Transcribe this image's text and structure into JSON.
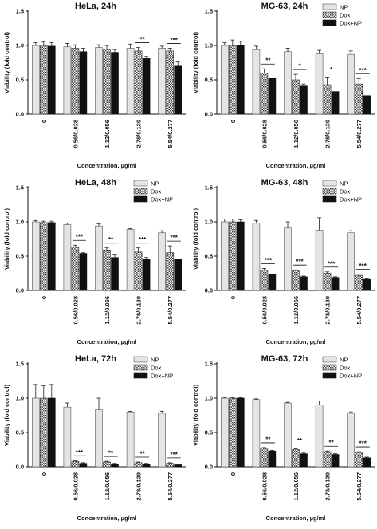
{
  "chart_data": [
    {
      "type": "bar",
      "title": "HeLa, 24h",
      "xlabel": "Concentration, µg/ml",
      "ylabel": "Viability (fold control)",
      "ylim": [
        0,
        1.5
      ],
      "yticks": [
        "0.0",
        "0.5",
        "1.0",
        "1.5"
      ],
      "categories": [
        "0",
        "0.56/0.028",
        "1.12/0.056",
        "2.78/0.139",
        "5.54/0.277"
      ],
      "legend": false,
      "series": [
        {
          "name": "NP",
          "values": [
            1.0,
            0.98,
            0.97,
            0.96,
            0.96
          ],
          "errors": [
            0.04,
            0.05,
            0.04,
            0.06,
            0.03
          ]
        },
        {
          "name": "Dox",
          "values": [
            1.0,
            0.96,
            0.95,
            0.92,
            0.92
          ],
          "errors": [
            0.05,
            0.05,
            0.05,
            0.05,
            0.04
          ]
        },
        {
          "name": "Dox+NP",
          "values": [
            0.99,
            0.91,
            0.9,
            0.81,
            0.7
          ],
          "errors": [
            0.05,
            0.05,
            0.04,
            0.03,
            0.06
          ]
        }
      ],
      "significance": [
        "",
        "",
        "",
        "**",
        "***"
      ]
    },
    {
      "type": "bar",
      "title": "MG-63, 24h",
      "xlabel": "Concentration, µg/ml",
      "ylabel": "Viability (fold control)",
      "ylim": [
        0,
        1.5
      ],
      "yticks": [
        "0.0",
        "0.5",
        "1.0",
        "1.5"
      ],
      "categories": [
        "0",
        "0.56/0.028",
        "1.12/0.056",
        "2.78/0.139",
        "5.54/0.277"
      ],
      "legend": true,
      "legend_position": "top-right",
      "series": [
        {
          "name": "NP",
          "values": [
            1.0,
            0.94,
            0.91,
            0.88,
            0.87
          ],
          "errors": [
            0.04,
            0.05,
            0.05,
            0.05,
            0.05
          ]
        },
        {
          "name": "Dox",
          "values": [
            1.0,
            0.6,
            0.5,
            0.43,
            0.44
          ],
          "errors": [
            0.08,
            0.06,
            0.08,
            0.1,
            0.08
          ]
        },
        {
          "name": "Dox+NP",
          "values": [
            1.0,
            0.52,
            0.41,
            0.33,
            0.27
          ],
          "errors": [
            0.06,
            0.0,
            0.03,
            0.0,
            0.0
          ]
        }
      ],
      "significance": [
        "",
        "**",
        "*",
        "*",
        "***"
      ]
    },
    {
      "type": "bar",
      "title": "HeLa, 48h",
      "xlabel": "Concentration, µg/ml",
      "ylabel": "Viability (fold control)",
      "ylim": [
        0,
        1.5
      ],
      "yticks": [
        "0.0",
        "0.5",
        "1.0",
        "1.5"
      ],
      "categories": [
        "0",
        "0.56/0.028",
        "1.12/0.056",
        "2.78/0.139",
        "5.54/0.277"
      ],
      "legend": true,
      "legend_position": "top-right",
      "series": [
        {
          "name": "NP",
          "values": [
            1.0,
            0.96,
            0.94,
            0.89,
            0.84
          ],
          "errors": [
            0.02,
            0.02,
            0.03,
            0.01,
            0.03
          ]
        },
        {
          "name": "Dox",
          "values": [
            0.99,
            0.63,
            0.59,
            0.56,
            0.55
          ],
          "errors": [
            0.02,
            0.03,
            0.03,
            0.06,
            0.1
          ]
        },
        {
          "name": "Dox+NP",
          "values": [
            0.99,
            0.54,
            0.48,
            0.46,
            0.45
          ],
          "errors": [
            0.02,
            0.01,
            0.05,
            0.02,
            0.01
          ]
        }
      ],
      "significance": [
        "",
        "***",
        "**",
        "***",
        "***"
      ]
    },
    {
      "type": "bar",
      "title": "MG-63, 48h",
      "xlabel": "Concentration, µg/ml",
      "ylabel": "Viability (fold control)",
      "ylim": [
        0,
        1.5
      ],
      "yticks": [
        "0.0",
        "0.5",
        "1.0",
        "1.5"
      ],
      "categories": [
        "0",
        "0.56/0.028",
        "1.12/0.056",
        "2.78/0.139",
        "5.54/0.277"
      ],
      "legend": true,
      "legend_position": "top-right",
      "series": [
        {
          "name": "NP",
          "values": [
            1.0,
            0.98,
            0.91,
            0.88,
            0.84
          ],
          "errors": [
            0.04,
            0.04,
            0.09,
            0.18,
            0.03
          ]
        },
        {
          "name": "Dox",
          "values": [
            1.0,
            0.3,
            0.29,
            0.25,
            0.22
          ],
          "errors": [
            0.04,
            0.02,
            0.01,
            0.02,
            0.02
          ]
        },
        {
          "name": "Dox+NP",
          "values": [
            1.0,
            0.23,
            0.2,
            0.19,
            0.16
          ],
          "errors": [
            0.03,
            0.01,
            0.01,
            0.01,
            0.01
          ]
        }
      ],
      "significance": [
        "",
        "***",
        "***",
        "***",
        "***"
      ]
    },
    {
      "type": "bar",
      "title": "HeLa, 72h",
      "xlabel": "Concentration, µg/ml",
      "ylabel": "Viability (fold control)",
      "ylim": [
        0,
        1.5
      ],
      "yticks": [
        "0.0",
        "0.5",
        "1.0",
        "1.5"
      ],
      "categories": [
        "0",
        "0.56/0.028",
        "1.12/0.056",
        "2.78/0.139",
        "5.54/0.277"
      ],
      "legend": true,
      "legend_position": "top-right",
      "series": [
        {
          "name": "NP",
          "values": [
            1.0,
            0.87,
            0.83,
            0.8,
            0.78
          ],
          "errors": [
            0.2,
            0.06,
            0.17,
            0.01,
            0.03
          ]
        },
        {
          "name": "Dox",
          "values": [
            1.0,
            0.08,
            0.07,
            0.06,
            0.05
          ],
          "errors": [
            0.18,
            0.01,
            0.01,
            0.01,
            0.01
          ]
        },
        {
          "name": "Dox+NP",
          "values": [
            1.0,
            0.05,
            0.04,
            0.04,
            0.03
          ],
          "errors": [
            0.2,
            0.01,
            0.01,
            0.01,
            0.01
          ]
        }
      ],
      "significance": [
        "",
        "***",
        "**",
        "**",
        "***"
      ]
    },
    {
      "type": "bar",
      "title": "MG-63, 72h",
      "xlabel": "Concentration, µg/ml",
      "ylabel": "Viability (fold control)",
      "ylim": [
        0,
        1.5
      ],
      "yticks": [
        "0.0",
        "0.5",
        "1.0",
        "1.5"
      ],
      "categories": [
        "0",
        "0.56/0.028",
        "1.12/0.056",
        "2.78/0.139",
        "5.54/0.277"
      ],
      "legend": true,
      "legend_position": "top-right",
      "series": [
        {
          "name": "NP",
          "values": [
            1.0,
            0.98,
            0.93,
            0.9,
            0.78
          ],
          "errors": [
            0.01,
            0.01,
            0.01,
            0.06,
            0.02
          ]
        },
        {
          "name": "Dox",
          "values": [
            1.0,
            0.27,
            0.25,
            0.22,
            0.21
          ],
          "errors": [
            0.01,
            0.01,
            0.01,
            0.01,
            0.01
          ]
        },
        {
          "name": "Dox+NP",
          "values": [
            1.0,
            0.23,
            0.19,
            0.18,
            0.13
          ],
          "errors": [
            0.01,
            0.01,
            0.01,
            0.01,
            0.01
          ]
        }
      ],
      "significance": [
        "",
        "**",
        "**",
        "**",
        "***"
      ]
    }
  ]
}
